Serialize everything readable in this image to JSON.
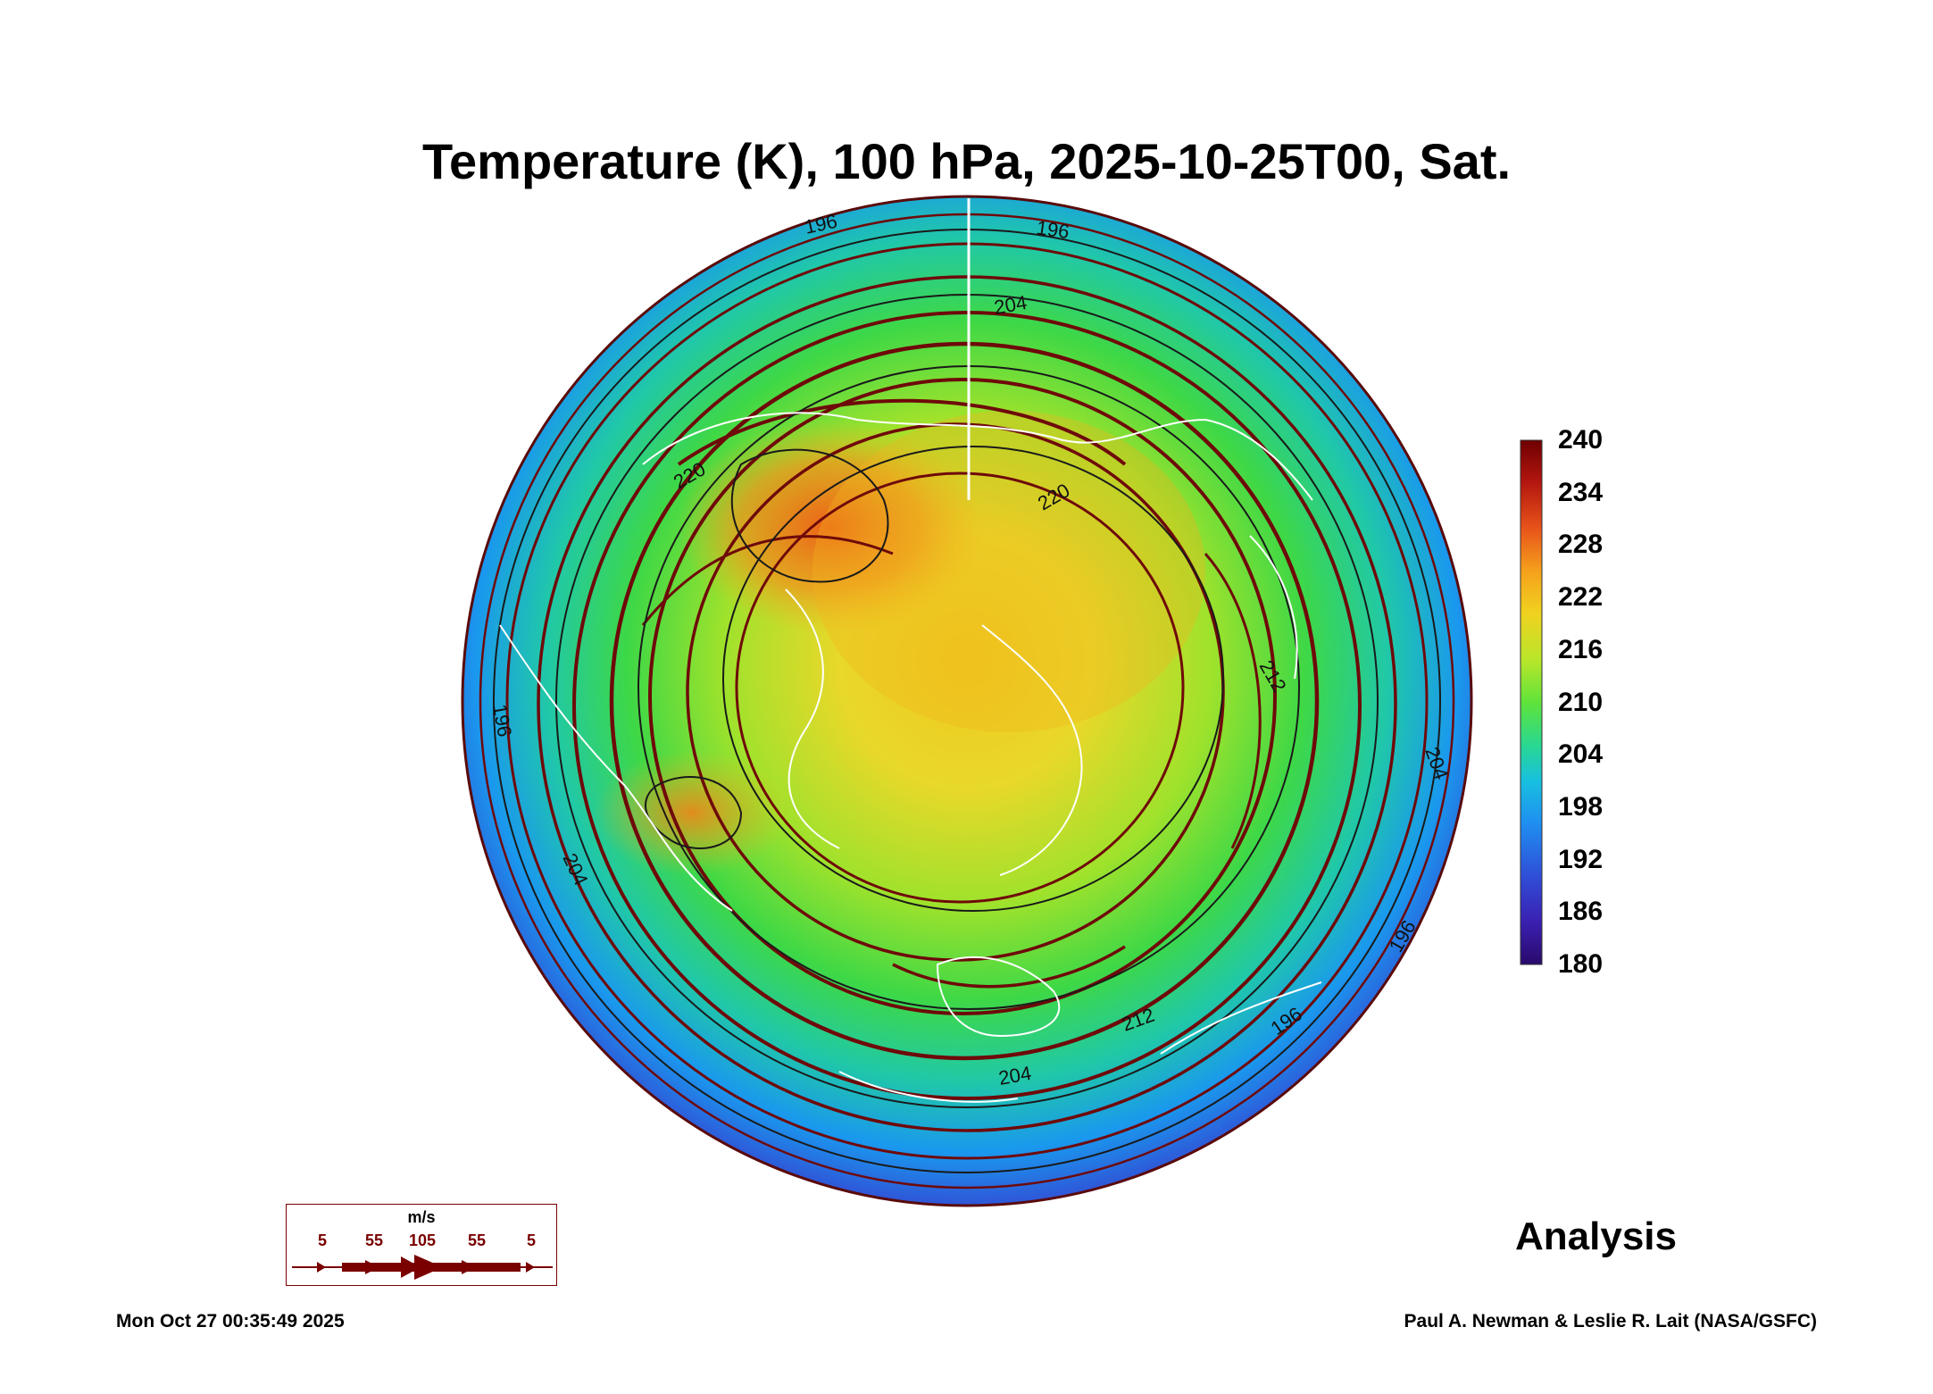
{
  "title": "Temperature (K), 100 hPa, 2025-10-25T00, Sat.",
  "colorbar": {
    "ticks": [
      "240",
      "234",
      "228",
      "222",
      "216",
      "210",
      "204",
      "198",
      "192",
      "186",
      "180"
    ],
    "min": 180,
    "max": 240,
    "colors": [
      "#2a0a6b",
      "#3a1fb0",
      "#2f4fd8",
      "#1f8ff0",
      "#18c0e0",
      "#2ad88f",
      "#5fe33a",
      "#b8e62a",
      "#f0d21f",
      "#f5a11c",
      "#e8551a",
      "#b3160f",
      "#6e0000"
    ]
  },
  "contour_labels": [
    "196",
    "196",
    "196",
    "196",
    "204",
    "204",
    "204",
    "212",
    "220",
    "220",
    "212",
    "204",
    "196"
  ],
  "wind_key": {
    "unit": "m/s",
    "labels": [
      "5",
      "55",
      "105",
      "55",
      "5"
    ]
  },
  "analysis_label": "Analysis",
  "timestamp": "Mon Oct 27 00:35:49 2025",
  "credit": "Paul A. Newman & Leslie R. Lait (NASA/GSFC)",
  "colors": {
    "streamline": "#6e0a0a",
    "contour": "#1a1a1a",
    "coastline": "#ffffff"
  }
}
